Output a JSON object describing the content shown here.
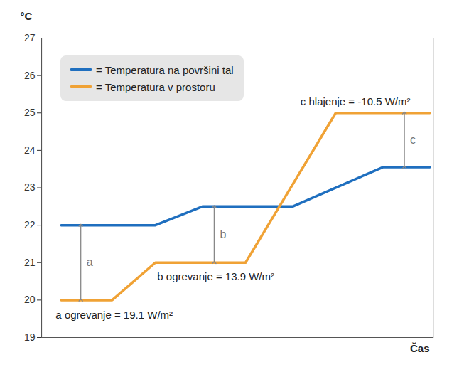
{
  "chart_data": {
    "type": "line",
    "x_label": "Čas",
    "y_label": "°C",
    "xlim": [
      0,
      100
    ],
    "ylim": [
      19,
      27
    ],
    "yticks": [
      19,
      20,
      21,
      22,
      23,
      24,
      25,
      26,
      27
    ],
    "grid": false,
    "legend": "upper left",
    "tick_labels": "y",
    "series": [
      {
        "name": "= Temperatura na površini tal",
        "color": "#1f6fbf",
        "x": [
          5,
          29,
          41,
          64,
          87,
          99
        ],
        "values": [
          22,
          22,
          22.5,
          22.5,
          23.55,
          23.55
        ]
      },
      {
        "name": "= Temperatura v prostoru",
        "color": "#f0a235",
        "x": [
          5,
          18,
          29,
          52,
          75,
          99
        ],
        "values": [
          20,
          20,
          21,
          21,
          25,
          25
        ]
      }
    ],
    "arrows": [
      {
        "label": "a",
        "x": 10,
        "from": 20,
        "to": 22
      },
      {
        "label": "b",
        "x": 44,
        "from": 21,
        "to": 22.5
      },
      {
        "label": "c",
        "x": 92.5,
        "from": 23.55,
        "to": 25
      }
    ],
    "annotations": [
      {
        "text": "a ogrevanje = 19.1 W/m²",
        "x": 3.6,
        "y": 19.59
      },
      {
        "text": "b ogrevanje = 13.9 W/m²",
        "x": 29.5,
        "y": 20.63
      },
      {
        "text": "c hlajenje = -10.5 W/m²",
        "x": 66,
        "y": 25.29
      }
    ]
  }
}
